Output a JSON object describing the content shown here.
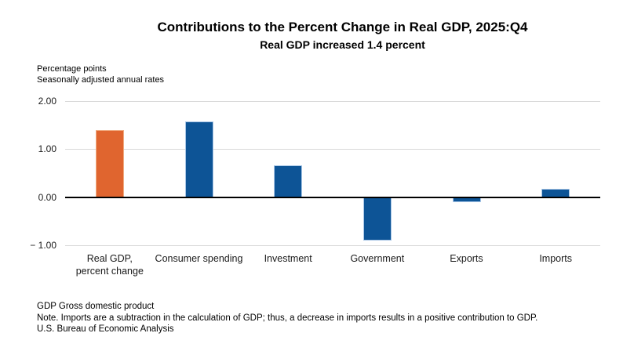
{
  "header": {
    "title": "Contributions to the Percent Change in Real GDP, 2025:Q4",
    "subtitle": "Real GDP increased 1.4 percent"
  },
  "axis_notes": {
    "line1": "Percentage points",
    "line2": "Seasonally adjusted annual rates"
  },
  "chart_data": {
    "type": "bar",
    "title": "Contributions to the Percent Change in Real GDP, 2025:Q4",
    "subtitle": "Real GDP increased 1.4 percent",
    "categories": [
      "Real GDP,\npercent change",
      "Consumer spending",
      "Investment",
      "Government",
      "Exports",
      "Imports"
    ],
    "values": [
      1.4,
      1.58,
      0.66,
      -0.9,
      -0.11,
      0.17
    ],
    "bar_colors": [
      "#E0652F",
      "#0D5496",
      "#0D5496",
      "#0D5496",
      "#0D5496",
      "#0D5496"
    ],
    "bar_edge_colors": [
      "#F0AC82",
      "#A9C7E7",
      "#A9C7E7",
      "#A9C7E7",
      "#A9C7E7",
      "#A9C7E7"
    ],
    "highlight_color": "#E0652F",
    "series_color": "#0D5496",
    "gridline_color": "#D9D9D9",
    "zero_line_color": "#000000",
    "ylabel": "Percentage points",
    "ylim": [
      -1,
      2
    ],
    "yticks": [
      {
        "value": 2,
        "label": "2.00"
      },
      {
        "value": 1,
        "label": "1.00"
      },
      {
        "value": 0,
        "label": "0.00"
      },
      {
        "value": -1,
        "label": "− 1.00"
      }
    ],
    "grid": "horizontal",
    "legend": "none"
  },
  "footer": {
    "line1": "GDP Gross domestic product",
    "line2": "Note. Imports are a subtraction in the calculation of GDP; thus, a decrease in imports results in a positive contribution to GDP.",
    "line3": "U.S. Bureau of Economic Analysis"
  }
}
